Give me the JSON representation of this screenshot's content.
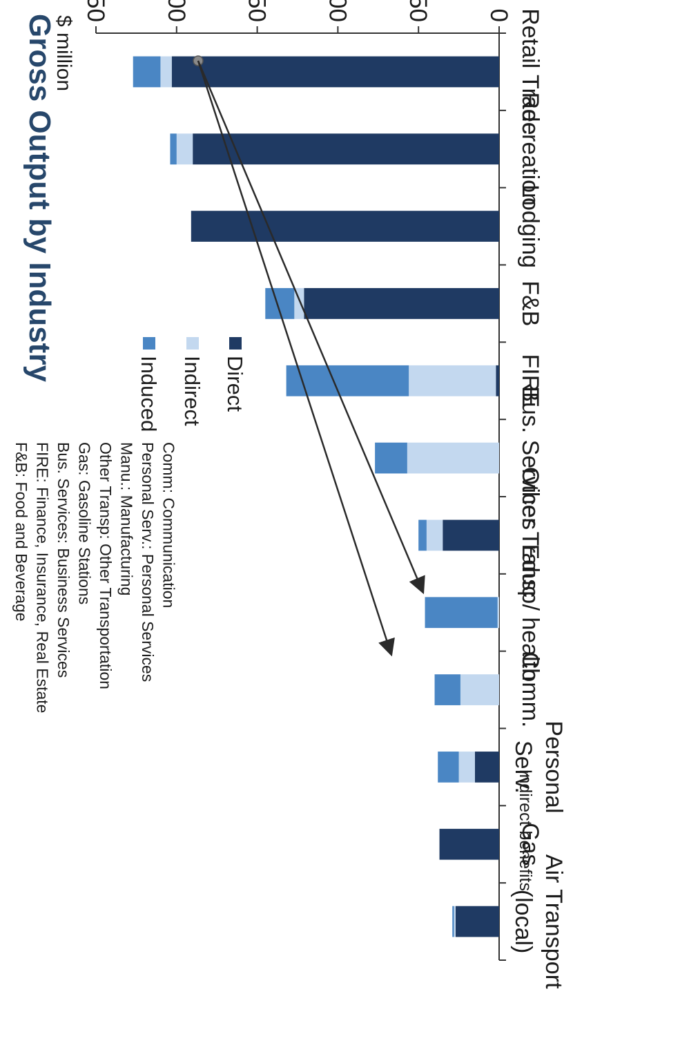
{
  "chart_data": {
    "type": "bar",
    "orientation": "stacked",
    "title": "Gross Output by Industry",
    "ylabel": "$ million",
    "ylim": [
      0,
      250
    ],
    "yticks": [
      0,
      50,
      100,
      150,
      200,
      250
    ],
    "categories": [
      [
        "Retail Trade"
      ],
      [
        "Recreation"
      ],
      [
        "Lodging"
      ],
      [
        "F&B"
      ],
      [
        "FIRE"
      ],
      [
        "Bus. Services"
      ],
      [
        "Other Transp"
      ],
      [
        "Educ / health"
      ],
      [
        "Comm."
      ],
      [
        "Personal",
        "Serv."
      ],
      [
        "Gas"
      ],
      [
        "Air Transport",
        "(local)"
      ]
    ],
    "series": [
      {
        "name": "Direct",
        "color": "#1f3a63",
        "values": [
          203,
          190,
          191,
          121,
          2,
          0,
          35,
          0,
          0,
          15,
          37,
          27
        ]
      },
      {
        "name": "Indirect",
        "color": "#c3d8ef",
        "values": [
          7,
          10,
          0,
          6,
          54,
          57,
          10,
          1,
          24,
          10,
          0,
          1
        ]
      },
      {
        "name": "Induced",
        "color": "#4a86c4",
        "values": [
          17,
          4,
          0,
          18,
          76,
          20,
          5,
          45,
          16,
          13,
          0,
          1
        ]
      }
    ],
    "legend": [
      "Induced",
      "Indirect",
      "Direct"
    ],
    "abbreviations": [
      "F&B: Food and Beverage",
      "FIRE: Finance, Insurance, Real Estate",
      "Bus. Services: Business Services",
      "Gas: Gasoline Stations",
      "Other Transp: Other Transportation",
      "Manu.: Manufacturing",
      "Personal Serv.: Personal Services",
      "Comm: Communication"
    ],
    "annotation": {
      "text": "Indirect benefits",
      "points_to": [
        "FIRE",
        "Bus. Services"
      ]
    }
  }
}
